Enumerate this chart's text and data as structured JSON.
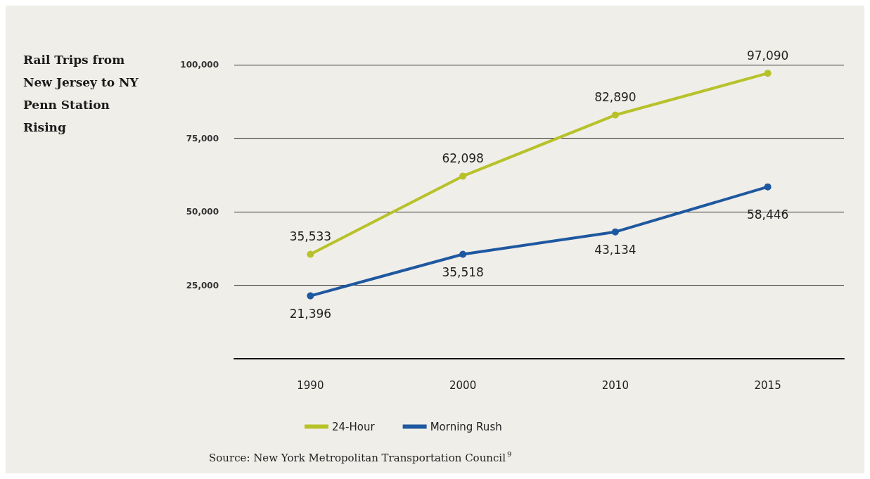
{
  "chart_data": {
    "type": "line",
    "title": "Rail Trips from New Jersey to NY Penn Station Rising",
    "categories": [
      "1990",
      "2000",
      "2010",
      "2015"
    ],
    "series": [
      {
        "name": "24-Hour",
        "color": "#b7c22a",
        "values": [
          35533,
          62098,
          82890,
          97090
        ],
        "value_labels": [
          "35,533",
          "62,098",
          "82,890",
          "97,090"
        ]
      },
      {
        "name": "Morning Rush",
        "color": "#1e58a0",
        "values": [
          21396,
          35518,
          43134,
          58446
        ],
        "value_labels": [
          "21,396",
          "35,518",
          "43,134",
          "58,446"
        ]
      }
    ],
    "ylim": [
      0,
      100000
    ],
    "yticks": [
      {
        "value": 0,
        "label": null
      },
      {
        "value": 25000,
        "label": "25,000"
      },
      {
        "value": 50000,
        "label": "50,000"
      },
      {
        "value": 75000,
        "label": "75,000"
      },
      {
        "value": 100000,
        "label": "100,000"
      }
    ],
    "grid": "y",
    "legend": "bottom",
    "marker": "circle",
    "line_style": "solid",
    "annotations": [
      "Source: New York Metropolitan Transportation Council$^{9}$"
    ]
  }
}
